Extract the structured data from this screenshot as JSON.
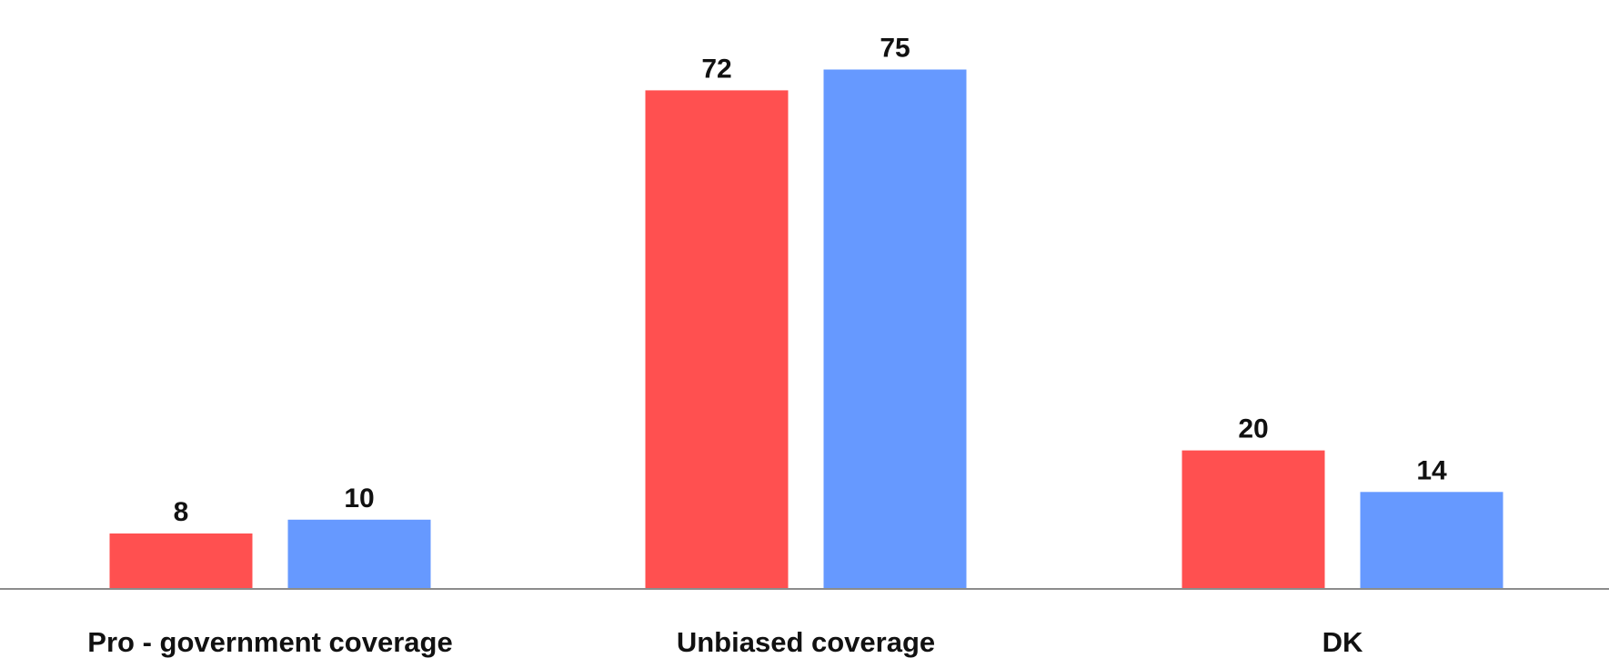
{
  "chart_data": {
    "type": "bar",
    "title": "",
    "xlabel": "",
    "ylabel": "",
    "categories": [
      "Pro - government coverage",
      "Unbiased coverage",
      "DK"
    ],
    "series": [
      {
        "values": [
          8,
          72,
          20
        ],
        "color": "#ff5050"
      },
      {
        "values": [
          10,
          75,
          14
        ],
        "color": "#6699ff"
      }
    ],
    "ylim": [
      0,
      75
    ],
    "grid": false,
    "legend": "none",
    "data_labels": true
  }
}
